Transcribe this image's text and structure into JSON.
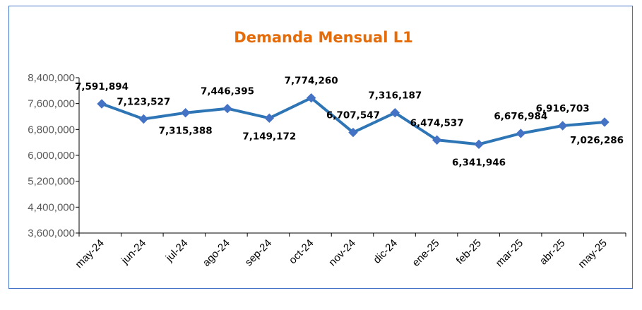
{
  "chart_data": {
    "type": "line",
    "title": "Demanda Mensual L1",
    "xlabel": "",
    "ylabel": "",
    "categories": [
      "may-24",
      "jun-24",
      "jul-24",
      "ago-24",
      "sep-24",
      "oct-24",
      "nov-24",
      "dic-24",
      "ene-25",
      "feb-25",
      "mar-25",
      "abr-25",
      "may-25"
    ],
    "series": [
      {
        "values": [
          7591894,
          7123527,
          7315388,
          7446395,
          7149172,
          7774260,
          6707547,
          7316187,
          6474537,
          6341946,
          6676984,
          6916703,
          7026286
        ],
        "value_labels": [
          "7,591,894",
          "7,123,527",
          "7,315,388",
          "7,446,395",
          "7,149,172",
          "7,774,260",
          "6,707,547",
          "7,316,187",
          "6,474,537",
          "6,341,946",
          "6,676,984",
          "6,916,703",
          "7,026,286"
        ],
        "color": "#2e75b6",
        "marker": "diamond"
      }
    ],
    "ylim": [
      3600000,
      8400000
    ],
    "yticks": [
      3600000,
      4400000,
      5200000,
      6000000,
      6800000,
      7600000,
      8400000
    ],
    "ytick_labels": [
      "3,600,000",
      "4,400,000",
      "5,200,000",
      "6,000,000",
      "6,800,000",
      "7,600,000",
      "8,400,000"
    ],
    "grid": false,
    "legend": "none",
    "colors": {
      "title": "#e46c0a",
      "line": "#2e75b6",
      "marker": "#4472c4",
      "frame": "#4472c4",
      "axis": "#000000"
    }
  }
}
